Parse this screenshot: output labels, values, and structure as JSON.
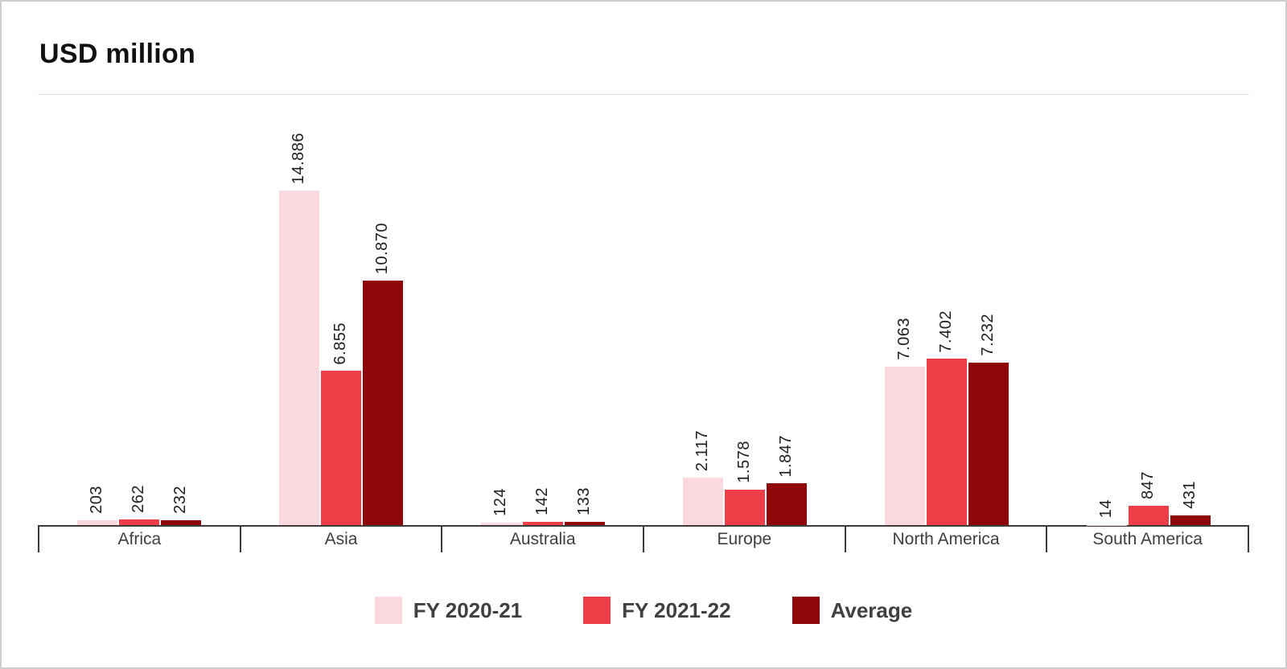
{
  "title": "USD million",
  "chart_data": {
    "type": "bar",
    "title": "USD million",
    "unit": "USD million",
    "categories": [
      "Africa",
      "Asia",
      "Australia",
      "Europe",
      "North America",
      "South America"
    ],
    "series": [
      {
        "name": "FY 2020-21",
        "color": "#FBD9DE",
        "values": [
          203,
          14886,
          124,
          2117,
          7063,
          14
        ],
        "labels": [
          "203",
          "14.886",
          "124",
          "2.117",
          "7.063",
          "14"
        ]
      },
      {
        "name": "FY 2021-22",
        "color": "#EE3E48",
        "values": [
          262,
          6855,
          142,
          1578,
          7402,
          847
        ],
        "labels": [
          "262",
          "6.855",
          "142",
          "1.578",
          "7.402",
          "847"
        ]
      },
      {
        "name": "Average",
        "color": "#8E060A",
        "values": [
          232,
          10870,
          133,
          1847,
          7232,
          431
        ],
        "labels": [
          "232",
          "10.870",
          "133",
          "1.847",
          "7.232",
          "431"
        ]
      }
    ],
    "ylim": [
      0,
      14886
    ],
    "grid": false,
    "y_axis_visible": false,
    "legend_position": "bottom",
    "bar_label_rotation": -90,
    "number_format": "dot-thousands-separator"
  },
  "colors": {
    "axis_line": "#3d3d3d",
    "divider": "#dddddd",
    "category_text": "#3f3f3f",
    "value_label_text": "#1f1f1f",
    "legend_text": "#404040",
    "frame_border": "#cccccc",
    "background": "#ffffff"
  }
}
